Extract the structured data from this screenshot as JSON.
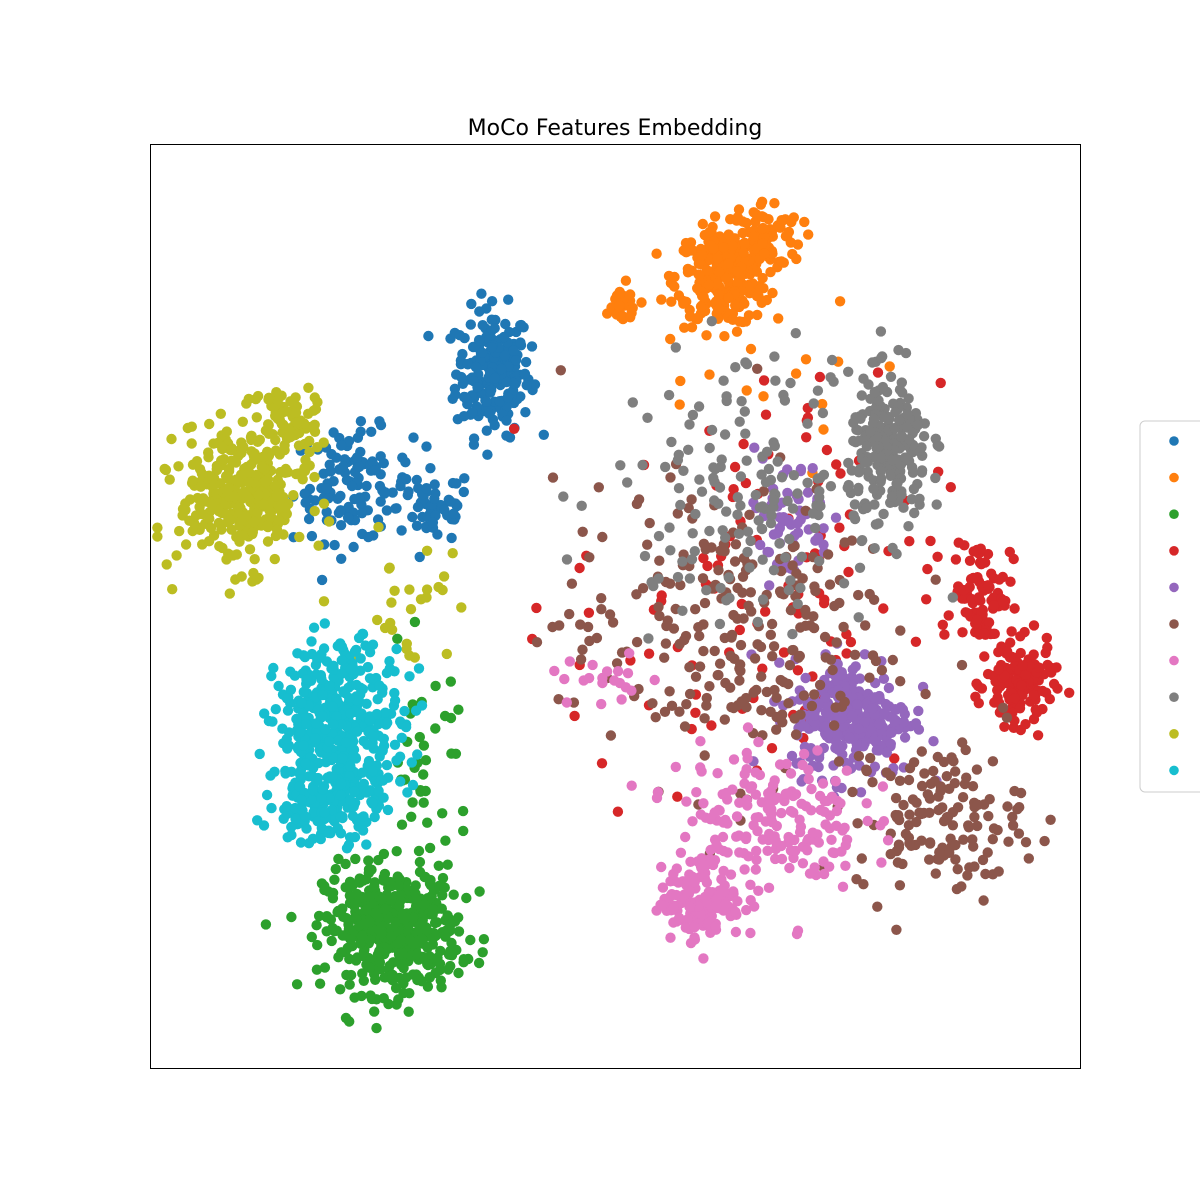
{
  "chart_data": {
    "type": "scatter",
    "title": "MoCo Features Embedding",
    "xlabel": "",
    "ylabel": "",
    "xlim": [
      0,
      100
    ],
    "ylim": [
      0,
      100
    ],
    "ticks": false,
    "grid": false,
    "legend": {
      "placement": "right",
      "entries": [
        {
          "color": "#1f77b4"
        },
        {
          "color": "#ff7f0e"
        },
        {
          "color": "#2ca02c"
        },
        {
          "color": "#d62728"
        },
        {
          "color": "#9467bd"
        },
        {
          "color": "#8c564b"
        },
        {
          "color": "#e377c2"
        },
        {
          "color": "#7f7f7f"
        },
        {
          "color": "#bcbd22"
        },
        {
          "color": "#17becf"
        }
      ]
    },
    "series": [
      {
        "color": "#1f77b4",
        "clusters": [
          {
            "cx": 36.9,
            "cy": 75.3,
            "sx": 2.0,
            "sy": 3.4,
            "n": 220
          },
          {
            "cx": 21.8,
            "cy": 63.0,
            "sx": 3.2,
            "sy": 3.0,
            "n": 120
          },
          {
            "cx": 30.6,
            "cy": 60.7,
            "sx": 2.0,
            "sy": 2.0,
            "n": 55
          }
        ]
      },
      {
        "color": "#ff7f0e",
        "clusters": [
          {
            "cx": 61.6,
            "cy": 85.5,
            "sx": 2.5,
            "sy": 2.6,
            "n": 260
          },
          {
            "cx": 66.0,
            "cy": 90.0,
            "sx": 2.0,
            "sy": 2.0,
            "n": 80
          },
          {
            "cx": 50.4,
            "cy": 82.4,
            "sx": 1.2,
            "sy": 1.2,
            "n": 25
          },
          {
            "cx": 63.0,
            "cy": 74.0,
            "sx": 7.0,
            "sy": 5.0,
            "n": 15
          }
        ]
      },
      {
        "color": "#2ca02c",
        "clusters": [
          {
            "cx": 26.0,
            "cy": 15.0,
            "sx": 3.6,
            "sy": 3.4,
            "n": 450
          },
          {
            "cx": 29.5,
            "cy": 32.0,
            "sx": 2.5,
            "sy": 6.0,
            "n": 40
          }
        ]
      },
      {
        "color": "#d62728",
        "clusters": [
          {
            "cx": 93.5,
            "cy": 41.5,
            "sx": 1.8,
            "sy": 2.2,
            "n": 130
          },
          {
            "cx": 89.5,
            "cy": 51.5,
            "sx": 1.6,
            "sy": 3.0,
            "n": 90
          },
          {
            "cx": 65.0,
            "cy": 50.0,
            "sx": 10.0,
            "sy": 12.0,
            "n": 120
          }
        ]
      },
      {
        "color": "#9467bd",
        "clusters": [
          {
            "cx": 75.5,
            "cy": 38.0,
            "sx": 3.2,
            "sy": 3.2,
            "n": 280
          },
          {
            "cx": 68.5,
            "cy": 59.5,
            "sx": 2.5,
            "sy": 3.5,
            "n": 60
          }
        ]
      },
      {
        "color": "#8c564b",
        "clusters": [
          {
            "cx": 85.0,
            "cy": 27.0,
            "sx": 4.5,
            "sy": 4.0,
            "n": 140
          },
          {
            "cx": 62.0,
            "cy": 47.0,
            "sx": 9.0,
            "sy": 8.0,
            "n": 260
          }
        ]
      },
      {
        "color": "#e377c2",
        "clusters": [
          {
            "cx": 59.3,
            "cy": 18.0,
            "sx": 2.2,
            "sy": 2.0,
            "n": 140
          },
          {
            "cx": 66.5,
            "cy": 27.0,
            "sx": 5.0,
            "sy": 4.0,
            "n": 200
          },
          {
            "cx": 49.0,
            "cy": 42.0,
            "sx": 3.0,
            "sy": 1.5,
            "n": 20
          }
        ]
      },
      {
        "color": "#7f7f7f",
        "clusters": [
          {
            "cx": 79.5,
            "cy": 66.5,
            "sx": 2.2,
            "sy": 4.0,
            "n": 220
          },
          {
            "cx": 64.0,
            "cy": 63.0,
            "sx": 7.0,
            "sy": 7.0,
            "n": 160
          }
        ]
      },
      {
        "color": "#bcbd22",
        "clusters": [
          {
            "cx": 10.0,
            "cy": 62.0,
            "sx": 3.4,
            "sy": 3.8,
            "n": 350
          },
          {
            "cx": 15.0,
            "cy": 70.0,
            "sx": 1.6,
            "sy": 2.0,
            "n": 60
          },
          {
            "cx": 28.0,
            "cy": 50.0,
            "sx": 3.0,
            "sy": 3.0,
            "n": 25
          }
        ]
      },
      {
        "color": "#17becf",
        "clusters": [
          {
            "cx": 20.5,
            "cy": 37.0,
            "sx": 3.4,
            "sy": 4.5,
            "n": 420
          },
          {
            "cx": 18.5,
            "cy": 28.5,
            "sx": 3.0,
            "sy": 2.0,
            "n": 120
          }
        ]
      }
    ]
  }
}
